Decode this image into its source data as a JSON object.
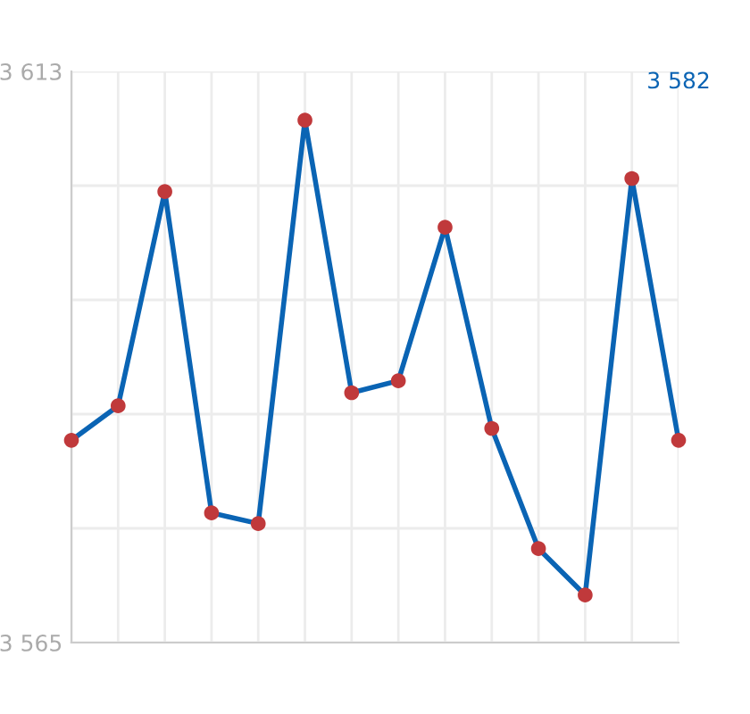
{
  "chart_data": {
    "type": "line",
    "categories": [
      null,
      null,
      null,
      null,
      null,
      null,
      null,
      null,
      null,
      null,
      null,
      null,
      null,
      null
    ],
    "series": [
      {
        "color": "#0a64b4",
        "colors": [
          "#c0393b",
          "#c0393b",
          "#c0393b",
          "#c0393b",
          "#c0393b",
          "#c0393b",
          "#c0393b",
          "#c0393b",
          "#c0393b",
          "#c0393b",
          "#c0393b",
          "#c0393b",
          "#c0393b",
          "#c0393b"
        ],
        "values": [
          3582,
          3584.9,
          3602.9,
          3575.9,
          3575,
          3608.9,
          3586,
          3587,
          3599.9,
          3583,
          3572.9,
          3569,
          3604,
          3582
        ]
      }
    ],
    "marker": "circle",
    "line_style": "solid",
    "ylim": [
      3565,
      3613
    ],
    "yticks": [
      {
        "value": 3565,
        "label": "3 565"
      },
      {
        "value": 3574.6,
        "label": null
      },
      {
        "value": 3584.2,
        "label": null
      },
      {
        "value": 3593.8,
        "label": null
      },
      {
        "value": 3603.4,
        "label": null
      },
      {
        "value": 3613,
        "label": "3 613"
      }
    ],
    "grid": true,
    "tick_labels": "y",
    "annotations": [
      "3 582"
    ]
  }
}
